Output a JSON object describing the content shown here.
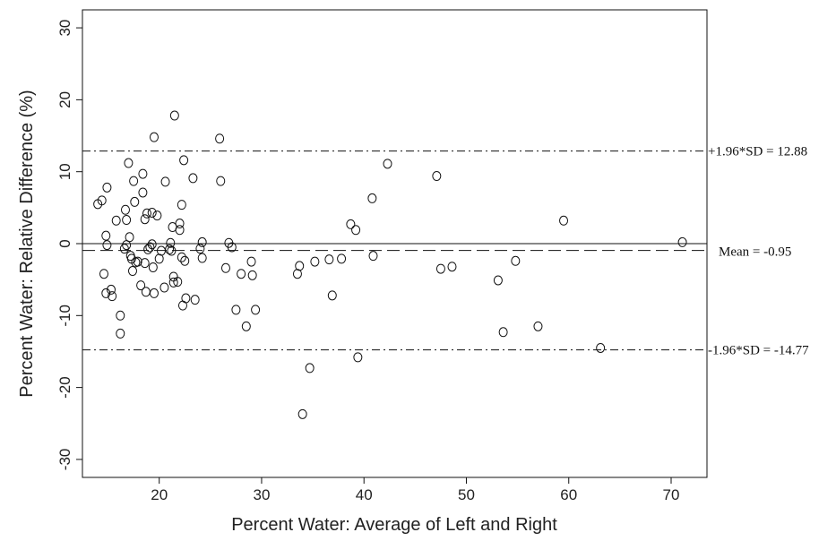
{
  "chart_data": {
    "type": "scatter",
    "title": "",
    "xlabel": "Percent Water: Average of Left and Right",
    "ylabel": "Percent Water: Relative Difference (%)",
    "xlim": [
      12.5,
      73.5
    ],
    "ylim": [
      -32.5,
      32.5
    ],
    "x_ticks": [
      20,
      30,
      40,
      50,
      60,
      70
    ],
    "y_ticks": [
      -30,
      -20,
      -10,
      0,
      10,
      20,
      30
    ],
    "grid": false,
    "reference_lines": [
      {
        "name": "zero",
        "y": 0,
        "style": "solid",
        "label": ""
      },
      {
        "name": "mean",
        "y": -0.95,
        "style": "dashed",
        "label": "Mean = -0.95"
      },
      {
        "name": "upper-loa",
        "y": 12.88,
        "style": "dash-dot",
        "label": "+1.96*SD = 12.88"
      },
      {
        "name": "lower-loa",
        "y": -14.77,
        "style": "dash-dot",
        "label": "-1.96*SD = -14.77"
      }
    ],
    "points": [
      [
        14.0,
        5.5
      ],
      [
        14.4,
        6.0
      ],
      [
        14.6,
        -4.2
      ],
      [
        14.8,
        1.1
      ],
      [
        14.9,
        -0.2
      ],
      [
        14.9,
        7.8
      ],
      [
        14.8,
        -6.9
      ],
      [
        15.3,
        -6.4
      ],
      [
        15.4,
        -7.3
      ],
      [
        15.8,
        3.2
      ],
      [
        16.2,
        -10.0
      ],
      [
        16.2,
        -12.5
      ],
      [
        16.6,
        -0.7
      ],
      [
        16.7,
        4.7
      ],
      [
        16.8,
        3.3
      ],
      [
        16.8,
        -0.2
      ],
      [
        17.0,
        11.2
      ],
      [
        17.1,
        0.9
      ],
      [
        17.2,
        -1.7
      ],
      [
        17.3,
        -2.1
      ],
      [
        17.4,
        -3.8
      ],
      [
        17.5,
        8.7
      ],
      [
        17.6,
        5.8
      ],
      [
        17.7,
        -2.6
      ],
      [
        17.9,
        -2.5
      ],
      [
        18.2,
        -5.8
      ],
      [
        18.4,
        9.7
      ],
      [
        18.4,
        7.1
      ],
      [
        18.6,
        3.4
      ],
      [
        18.6,
        -2.7
      ],
      [
        18.7,
        -6.7
      ],
      [
        18.8,
        4.2
      ],
      [
        18.9,
        -0.8
      ],
      [
        19.1,
        -0.5
      ],
      [
        19.3,
        -0.1
      ],
      [
        19.3,
        4.3
      ],
      [
        19.4,
        -3.3
      ],
      [
        19.5,
        14.8
      ],
      [
        19.5,
        -6.9
      ],
      [
        19.8,
        3.9
      ],
      [
        20.0,
        -2.1
      ],
      [
        20.2,
        -1.0
      ],
      [
        20.5,
        -6.1
      ],
      [
        20.6,
        8.6
      ],
      [
        21.0,
        -0.8
      ],
      [
        21.1,
        0.1
      ],
      [
        21.2,
        -1.0
      ],
      [
        21.3,
        2.3
      ],
      [
        21.4,
        -4.6
      ],
      [
        21.4,
        -5.4
      ],
      [
        21.5,
        17.8
      ],
      [
        21.8,
        -5.3
      ],
      [
        22.0,
        2.8
      ],
      [
        22.0,
        1.9
      ],
      [
        22.2,
        5.4
      ],
      [
        22.2,
        -1.9
      ],
      [
        22.3,
        -8.6
      ],
      [
        22.4,
        11.6
      ],
      [
        22.5,
        -2.4
      ],
      [
        22.6,
        -7.6
      ],
      [
        23.3,
        9.1
      ],
      [
        23.5,
        -7.8
      ],
      [
        24.0,
        -0.7
      ],
      [
        24.2,
        0.2
      ],
      [
        24.2,
        -2.0
      ],
      [
        25.9,
        14.6
      ],
      [
        26.0,
        8.7
      ],
      [
        26.5,
        -3.4
      ],
      [
        26.8,
        0.1
      ],
      [
        27.1,
        -0.5
      ],
      [
        27.5,
        -9.2
      ],
      [
        28.0,
        -4.2
      ],
      [
        28.5,
        -11.5
      ],
      [
        29.0,
        -2.5
      ],
      [
        29.1,
        -4.4
      ],
      [
        29.4,
        -9.2
      ],
      [
        33.5,
        -4.2
      ],
      [
        33.7,
        -3.1
      ],
      [
        34.0,
        -23.7
      ],
      [
        34.7,
        -17.3
      ],
      [
        35.2,
        -2.5
      ],
      [
        36.6,
        -2.2
      ],
      [
        36.9,
        -7.2
      ],
      [
        37.8,
        -2.1
      ],
      [
        38.7,
        2.7
      ],
      [
        39.2,
        1.9
      ],
      [
        39.4,
        -15.8
      ],
      [
        40.8,
        6.3
      ],
      [
        40.9,
        -1.7
      ],
      [
        42.3,
        11.1
      ],
      [
        47.1,
        9.4
      ],
      [
        47.5,
        -3.5
      ],
      [
        48.6,
        -3.2
      ],
      [
        53.1,
        -5.1
      ],
      [
        53.6,
        -12.3
      ],
      [
        54.8,
        -2.4
      ],
      [
        57.0,
        -11.5
      ],
      [
        59.5,
        3.2
      ],
      [
        63.1,
        -14.5
      ],
      [
        71.1,
        0.2
      ]
    ]
  }
}
